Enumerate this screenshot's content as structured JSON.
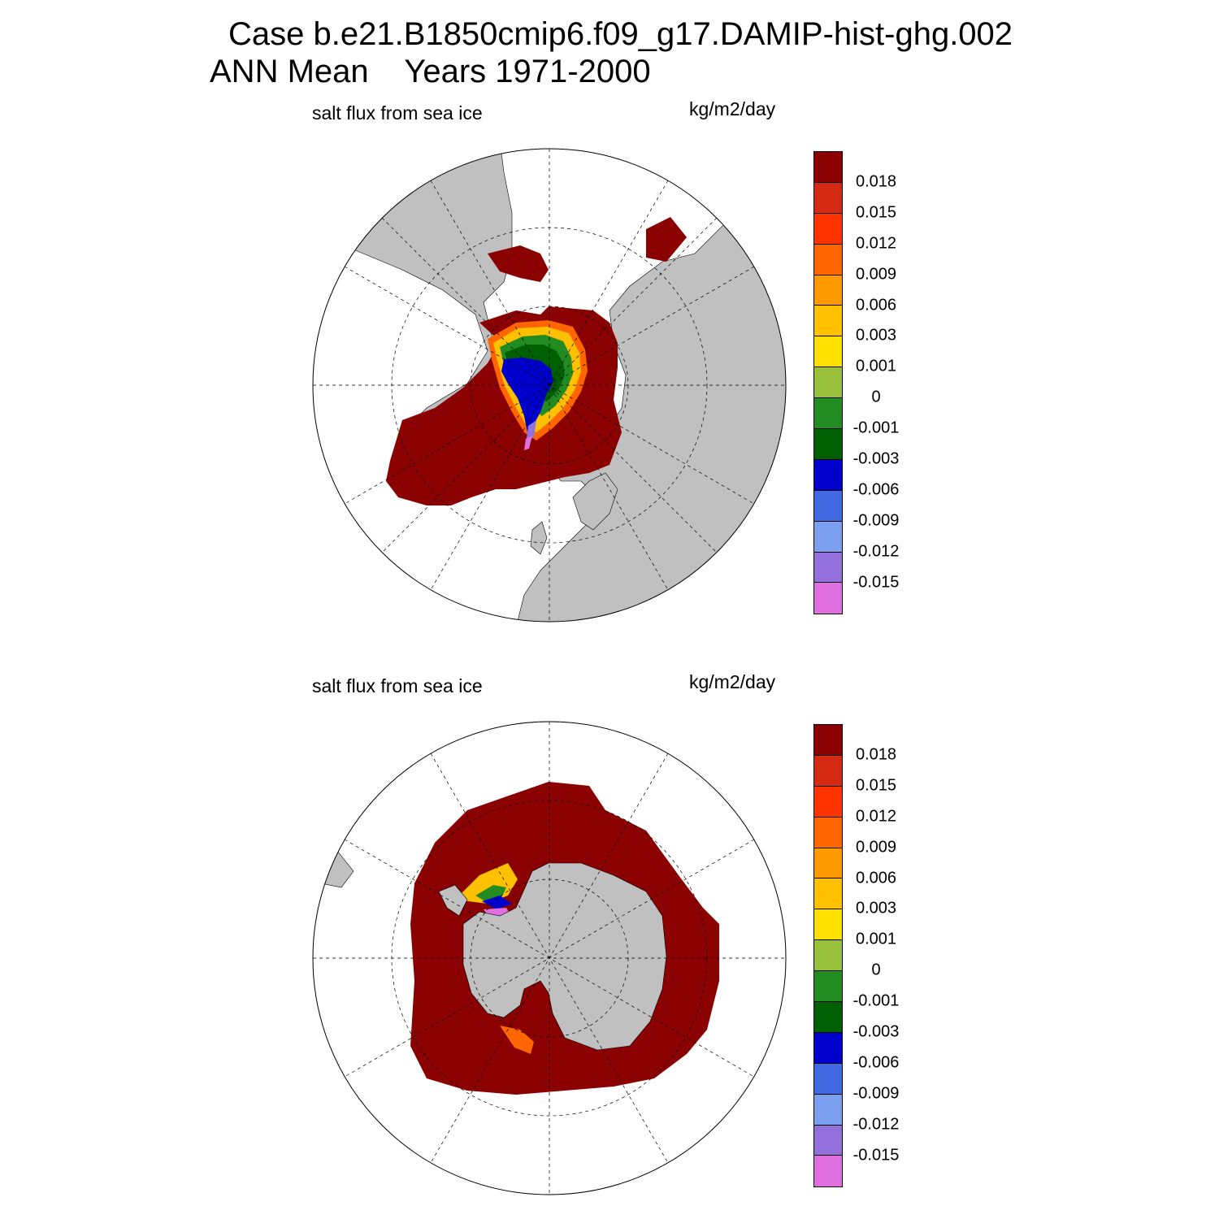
{
  "title": {
    "line1": "Case b.e21.B1850cmip6.f09_g17.DAMIP-hist-ghg.002",
    "line2": "ANN Mean    Years 1971-2000"
  },
  "panels": [
    {
      "id": "north",
      "hemisphere": "Northern Hemisphere polar stereographic",
      "variable_label": "salt flux from sea ice",
      "units_label": "kg/m2/day"
    },
    {
      "id": "south",
      "hemisphere": "Southern Hemisphere polar stereographic",
      "variable_label": "salt flux from sea ice",
      "units_label": "kg/m2/day"
    }
  ],
  "colorbar": {
    "levels": [
      "0.018",
      "0.015",
      "0.012",
      "0.009",
      "0.006",
      "0.003",
      "0.001",
      "0",
      "-0.001",
      "-0.003",
      "-0.006",
      "-0.009",
      "-0.012",
      "-0.015"
    ],
    "colors": [
      "#8b0000",
      "#d42a14",
      "#ff3300",
      "#ff6600",
      "#ff9900",
      "#ffc000",
      "#ffe000",
      "#99c03a",
      "#228b22",
      "#005f00",
      "#0000cc",
      "#4169e1",
      "#7aa0ef",
      "#9370db",
      "#e070e0"
    ]
  },
  "map_style": {
    "land_color": "#c0c0c0",
    "ocean_color": "#ffffff",
    "graticule": "dashed"
  }
}
